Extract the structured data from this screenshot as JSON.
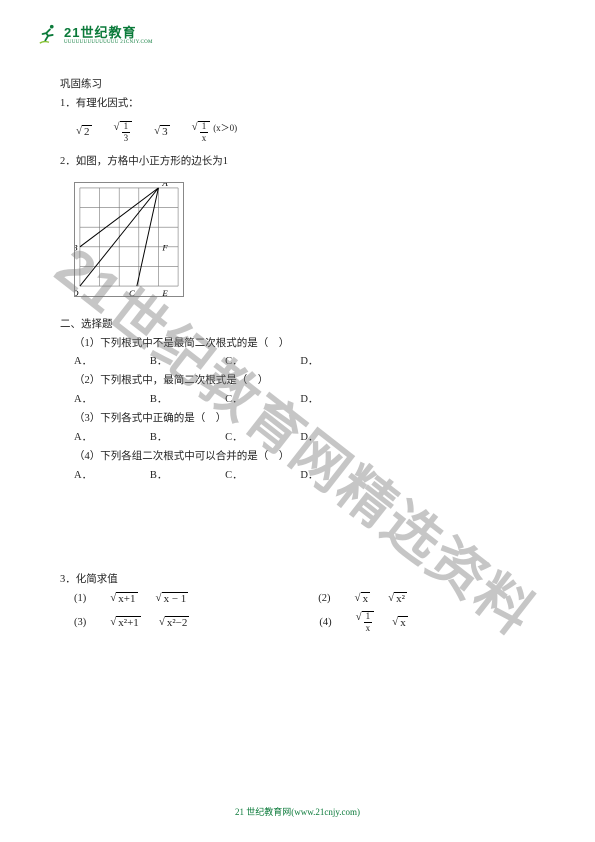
{
  "logo": {
    "brand": "21世纪教育",
    "tagline": "UUUUUUUUUUUUUU 21CNJY.COM"
  },
  "watermark": "21世纪教育网精选资料",
  "footer": "21 世纪教育网(www.21cnjy.com)",
  "title_line": "巩固练习",
  "title_formula_label": "1．有理化因式：",
  "formulas": {
    "f1": {
      "sqrt_sym": "√",
      "body": "2"
    },
    "f2": {
      "sqrt_sym": "√",
      "num": "1",
      "den": "3"
    },
    "f3": {
      "sqrt_sym": "√",
      "body": "3"
    },
    "f4": {
      "sqrt_sym": "√",
      "num": "1",
      "den": "x",
      "cond": "(x＞0)"
    }
  },
  "fig_title": "2．如图，方格中小正方形的边长为1",
  "grid_fig": {
    "cols": 5,
    "rows": 5,
    "labels": {
      "A": [
        4,
        0
      ],
      "B": [
        0,
        3
      ],
      "F": [
        4,
        3
      ],
      "D": [
        0,
        5
      ],
      "C": [
        2.9,
        5
      ],
      "E": [
        4,
        5
      ]
    },
    "line_color": "#777",
    "diag_lines": [
      [
        0,
        3,
        4,
        0
      ],
      [
        0,
        5,
        4,
        0
      ],
      [
        4,
        0,
        2.9,
        5
      ]
    ]
  },
  "mid_heading_1": "二、选择题",
  "mid_text_1": "（1）下列根式中不是最简二次根式的是（　）",
  "mid_text_2": "（2）下列根式中，最简二次根式是（　）",
  "mid_text_3": "（3）下列各式中正确的是（　）",
  "mid_text_4": "（4）下列各组二次根式中可以合并的是（　）",
  "blank_lines": [
    "A．　　　　　　B．　　　　　　C．　　　　　　D．",
    "A．　　　　　　B．　　　　　　C．　　　　　　D．",
    "A．　　　　　　B．　　　　　　C．　　　　　　D．",
    "A．　　　　　　B．　　　　　　C．　　　　　　D．"
  ],
  "bottom_heading": "3．化简求值",
  "pairs": {
    "row1": {
      "a_label": "(1)",
      "a1": {
        "sqrt_sym": "√",
        "body": "x+1"
      },
      "a2": {
        "sqrt_sym": "√",
        "body": "x − 1"
      },
      "b_label": "(2)",
      "b1": {
        "sqrt_sym": "√",
        "body": "x"
      },
      "b2": {
        "sqrt_sym": "√",
        "body": "x²"
      }
    },
    "row2": {
      "a_label": "(3)",
      "a1": {
        "sqrt_sym": "√",
        "body": "x²+1"
      },
      "a2": {
        "sqrt_sym": "√",
        "body": "x²−2"
      },
      "b_label": "(4)",
      "b1": {
        "sqrt_sym": "√",
        "num": "1",
        "den": "x"
      },
      "b2": {
        "sqrt_sym": "√",
        "body": "x"
      }
    }
  }
}
